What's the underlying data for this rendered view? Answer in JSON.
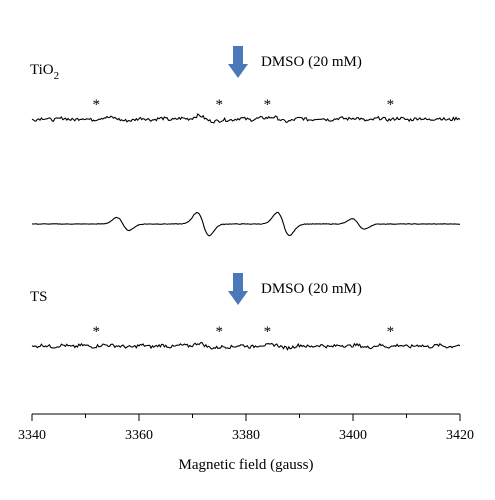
{
  "chart_data": {
    "type": "line",
    "xlabel": "Magnetic field (gauss)",
    "xlim": [
      3340,
      3420
    ],
    "x_ticks": [
      "3340",
      "3360",
      "3380",
      "3400",
      "3420"
    ],
    "panels": [
      {
        "label": "",
        "spectrum": "reference",
        "offset": 430,
        "lines": [
          {
            "center": 3357,
            "amp": 1.0
          },
          {
            "center": 3372,
            "amp": 2.0
          },
          {
            "center": 3387,
            "amp": 2.0
          },
          {
            "center": 3401,
            "amp": 1.0
          }
        ]
      },
      {
        "label": "TiO2",
        "label_base": "TiO",
        "label_sub": "2",
        "arrow_text": "DMSO (20 mM)",
        "spectrum": "after DMSO",
        "offset": 295,
        "lines": [
          {
            "center": 3356,
            "amp": 0.35
          },
          {
            "center": 3372,
            "amp": 0.45
          },
          {
            "center": 3374,
            "amp": 0.3
          },
          {
            "center": 3386,
            "amp": 0.4
          },
          {
            "center": 3401,
            "amp": 0.2
          }
        ],
        "marker": "*",
        "marker_fields": [
          3352,
          3375,
          3384,
          3407
        ]
      },
      {
        "label": "",
        "spectrum": "reference",
        "offset": 190,
        "lines": [
          {
            "center": 3357,
            "amp": 1.0
          },
          {
            "center": 3372,
            "amp": 1.8
          },
          {
            "center": 3387,
            "amp": 1.8
          },
          {
            "center": 3401,
            "amp": 0.8
          }
        ]
      },
      {
        "label": "TS",
        "arrow_text": "DMSO (20 mM)",
        "spectrum": "after DMSO",
        "offset": 68,
        "lines": [
          {
            "center": 3356,
            "amp": 0.2
          },
          {
            "center": 3372,
            "amp": 0.35
          },
          {
            "center": 3374,
            "amp": 0.25
          },
          {
            "center": 3386,
            "amp": 0.3
          },
          {
            "center": 3401,
            "amp": 0.15
          }
        ],
        "marker": "*",
        "marker_fields": [
          3352,
          3375,
          3384,
          3407
        ]
      }
    ],
    "colors": {
      "trace": "#000000",
      "arrow": "#4a78b8",
      "axis": "#000000"
    }
  }
}
